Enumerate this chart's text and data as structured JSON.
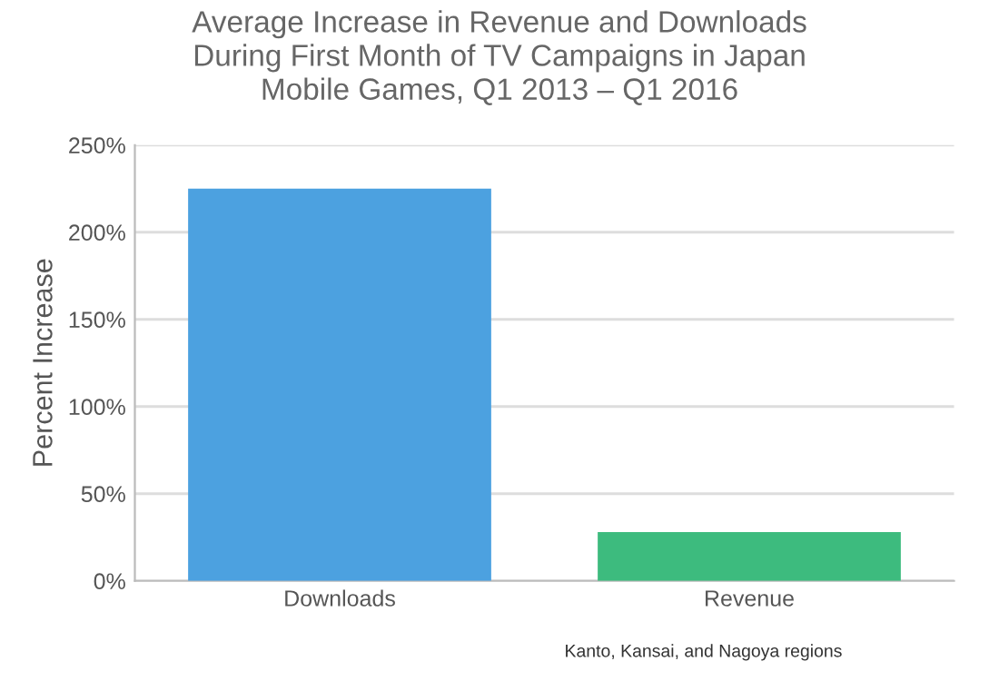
{
  "chart_data": {
    "type": "bar",
    "title": "Average Increase in Revenue and Downloads\nDuring First Month of TV Campaigns in Japan\nMobile Games, Q1 2013 – Q1 2016",
    "ylabel": "Percent Increase",
    "categories": [
      "Downloads",
      "Revenue"
    ],
    "values": [
      225,
      28
    ],
    "colors": [
      "#4ca1e0",
      "#3dbb7e"
    ],
    "ylim": [
      0,
      250
    ],
    "yticks": [
      {
        "value": 0,
        "label": "0%"
      },
      {
        "value": 50,
        "label": "50%"
      },
      {
        "value": 100,
        "label": "100%"
      },
      {
        "value": 150,
        "label": "150%"
      },
      {
        "value": 200,
        "label": "200%"
      },
      {
        "value": 250,
        "label": "250%"
      }
    ],
    "grid": "y",
    "annotations": [
      "Kanto, Kansai, and Nagoya regions"
    ]
  }
}
